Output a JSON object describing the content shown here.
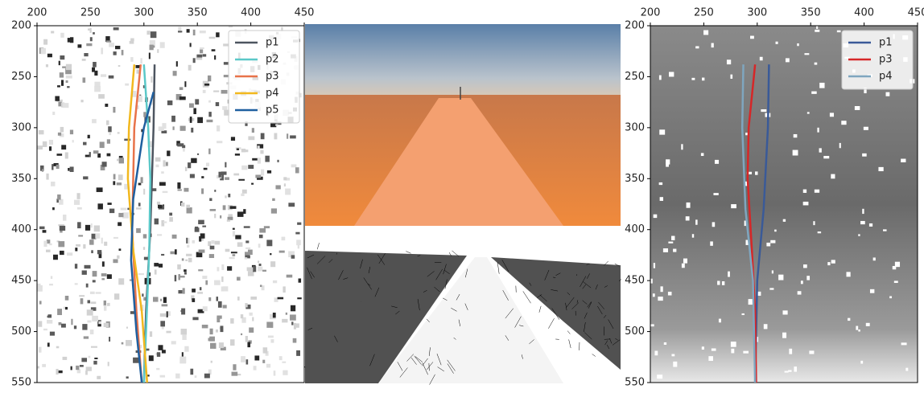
{
  "chart_data": [
    {
      "type": "line",
      "y_inverted": true,
      "legend": "upper right",
      "xlim": [
        200,
        450
      ],
      "ylim": [
        200,
        550
      ],
      "xticks": [
        200,
        250,
        300,
        350,
        400,
        450
      ],
      "yticks": [
        200,
        250,
        300,
        350,
        400,
        450,
        500,
        550
      ],
      "series": [
        {
          "name": "p1",
          "color": "#4d5560",
          "x": [
            310,
            309,
            306,
            302,
            300
          ],
          "values": [
            238,
            300,
            400,
            480,
            550
          ]
        },
        {
          "name": "p2",
          "color": "#5bc8c8",
          "x": [
            300,
            304,
            306,
            305,
            302,
            300
          ],
          "values": [
            238,
            300,
            350,
            420,
            500,
            550
          ]
        },
        {
          "name": "p3",
          "color": "#e8734a",
          "x": [
            297,
            291,
            289,
            293,
            298
          ],
          "values": [
            238,
            300,
            400,
            480,
            550
          ]
        },
        {
          "name": "p4",
          "color": "#f2b81e",
          "x": [
            291,
            286,
            285,
            290,
            298,
            303
          ],
          "values": [
            238,
            300,
            350,
            420,
            480,
            550
          ]
        },
        {
          "name": "p5",
          "color": "#1f5f9f",
          "x": [
            309,
            300,
            290,
            288,
            293,
            298
          ],
          "values": [
            265,
            300,
            370,
            430,
            500,
            550
          ]
        }
      ]
    },
    {
      "type": "line",
      "y_inverted": true,
      "legend": "upper right",
      "xlim": [
        200,
        450
      ],
      "ylim": [
        200,
        550
      ],
      "xticks": [
        200,
        250,
        300,
        350,
        400,
        450
      ],
      "yticks": [
        200,
        250,
        300,
        350,
        400,
        450,
        500,
        550
      ],
      "series": [
        {
          "name": "p1",
          "color": "#3a5a98",
          "x": [
            311,
            310,
            306,
            300,
            298
          ],
          "values": [
            238,
            300,
            380,
            450,
            550
          ]
        },
        {
          "name": "p3",
          "color": "#d62728",
          "x": [
            298,
            292,
            291,
            295,
            298,
            299
          ],
          "values": [
            238,
            300,
            350,
            420,
            480,
            550
          ]
        },
        {
          "name": "p4",
          "color": "#7fa6bf",
          "x": [
            287,
            286,
            289,
            296,
            298
          ],
          "values": [
            238,
            300,
            380,
            450,
            550
          ]
        }
      ]
    }
  ]
}
